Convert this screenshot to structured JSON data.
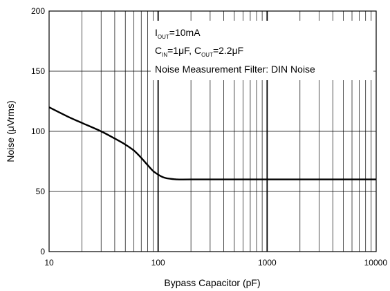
{
  "chart_data": {
    "type": "line",
    "title": "",
    "xlabel": "Bypass Capacitor (pF)",
    "ylabel": "Noise (μVrms)",
    "x_scale": "log",
    "xlim": [
      10,
      10000
    ],
    "ylim": [
      0,
      200
    ],
    "x_ticks": [
      10,
      100,
      1000,
      10000
    ],
    "x_tick_labels": [
      "10",
      "100",
      "1000",
      "10000"
    ],
    "y_ticks": [
      0,
      50,
      100,
      150,
      200
    ],
    "y_tick_labels": [
      "0",
      "50",
      "100",
      "150",
      "200"
    ],
    "grid": true,
    "series": [
      {
        "x": [
          10,
          15,
          20,
          30,
          40,
          50,
          60,
          70,
          80,
          90,
          100,
          110,
          120,
          150,
          200,
          500,
          1000,
          10000
        ],
        "y": [
          120,
          112,
          107,
          100,
          94,
          89,
          84,
          78,
          72,
          67,
          64,
          62,
          61,
          60,
          60,
          60,
          60,
          60
        ]
      }
    ],
    "annotation": {
      "line1": {
        "main": "I",
        "sub": "OUT",
        "rest": "=10mA"
      },
      "line2": {
        "c1": "C",
        "c1sub": "IN",
        "c1rest": "=1μF, ",
        "c2": "C",
        "c2sub": "OUT",
        "c2rest": "=2.2μF"
      },
      "line3": "Noise Measurement Filter: DIN Noise"
    }
  }
}
